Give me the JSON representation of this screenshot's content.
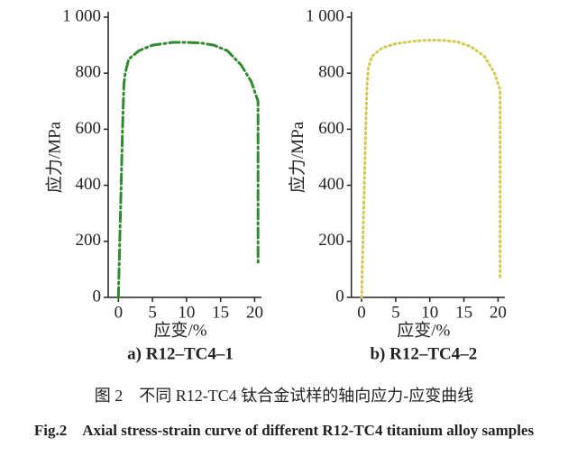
{
  "chart_data": [
    {
      "type": "line",
      "title": "a) R12–TC4–1",
      "xlabel": "应变/%",
      "ylabel": "应力/MPa",
      "x": [
        0,
        0.3,
        0.6,
        0.8,
        1,
        1.5,
        3,
        5,
        8,
        10,
        12,
        14,
        16,
        18,
        19.5,
        20.5,
        20.5
      ],
      "series": [
        {
          "color": "#2e8b2e",
          "style": "dashdot",
          "values": [
            0,
            300,
            600,
            760,
            800,
            850,
            880,
            900,
            910,
            910,
            908,
            900,
            880,
            830,
            770,
            700,
            120
          ]
        }
      ],
      "xlim": [
        -1.5,
        21
      ],
      "xticks": [
        0,
        5,
        10,
        15,
        20
      ],
      "ylim": [
        0,
        1000
      ],
      "yticks": [
        0,
        200,
        400,
        600,
        800,
        {
          "value": 1000,
          "label": "1 000"
        }
      ]
    },
    {
      "type": "line",
      "title": "b) R12–TC4–2",
      "xlabel": "应变/%",
      "ylabel": "应力/MPa",
      "x": [
        0,
        0.3,
        0.6,
        0.8,
        1,
        1.5,
        3,
        5,
        8,
        10,
        12,
        14,
        16,
        18,
        19.5,
        20.3,
        20.3
      ],
      "series": [
        {
          "color": "#d6c94c",
          "style": "dotted",
          "values": [
            0,
            300,
            600,
            760,
            820,
            860,
            890,
            905,
            915,
            918,
            917,
            912,
            895,
            860,
            800,
            740,
            70
          ]
        }
      ],
      "xlim": [
        -1.5,
        21
      ],
      "xticks": [
        0,
        5,
        10,
        15,
        20
      ],
      "ylim": [
        0,
        1000
      ],
      "yticks": [
        0,
        200,
        400,
        600,
        800,
        {
          "value": 1000,
          "label": "1 000"
        }
      ]
    }
  ],
  "caption_cn": "图 2　不同 R12-TC4 钛合金试样的轴向应力-应变曲线",
  "caption_en": "Fig.2　Axial stress-strain curve of different R12-TC4 titanium alloy samples"
}
